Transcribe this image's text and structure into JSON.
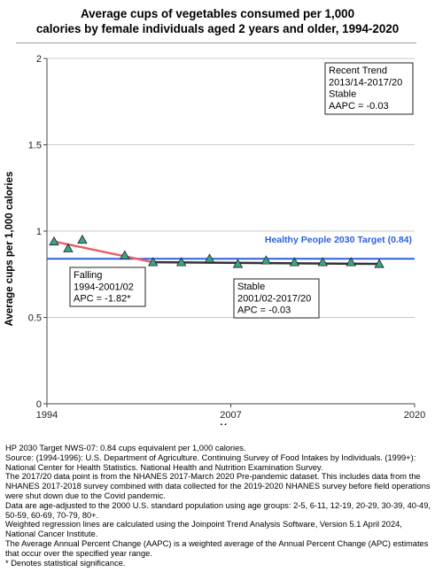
{
  "title": {
    "line1": "Average cups of vegetables consumed per 1,000",
    "line2": "calories by female individuals aged 2 years and older, 1994-2020"
  },
  "chart_data": {
    "type": "scatter",
    "xlabel": "Year",
    "ylabel": "Average cups per 1,000 calories",
    "xlim": [
      1994,
      2020
    ],
    "ylim": [
      0,
      2
    ],
    "x_ticks": [
      1994,
      2007,
      2020
    ],
    "x_tick_labels": [
      "1994",
      "2007",
      "2020"
    ],
    "y_ticks": [
      0,
      0.5,
      1,
      1.5,
      2
    ],
    "y_tick_labels": [
      "0",
      "0.5",
      "1",
      "1.5",
      "2"
    ],
    "grid": "horizontal",
    "points": [
      {
        "x": 1994.5,
        "y": 0.94
      },
      {
        "x": 1995.5,
        "y": 0.9
      },
      {
        "x": 1996.5,
        "y": 0.95
      },
      {
        "x": 1999.5,
        "y": 0.86
      },
      {
        "x": 2001.5,
        "y": 0.82
      },
      {
        "x": 2003.5,
        "y": 0.82
      },
      {
        "x": 2005.5,
        "y": 0.84
      },
      {
        "x": 2007.5,
        "y": 0.81
      },
      {
        "x": 2009.5,
        "y": 0.83
      },
      {
        "x": 2011.5,
        "y": 0.82
      },
      {
        "x": 2013.5,
        "y": 0.82
      },
      {
        "x": 2015.5,
        "y": 0.82
      },
      {
        "x": 2017.5,
        "y": 0.81
      }
    ],
    "trend_segments": [
      {
        "x": [
          1994.5,
          2001.5
        ],
        "y": [
          0.94,
          0.82
        ],
        "color": "#e8606a"
      },
      {
        "x": [
          2001.5,
          2017.5
        ],
        "y": [
          0.82,
          0.81
        ],
        "color": "#333333"
      }
    ],
    "target": {
      "value": 0.84,
      "label": "Healthy People 2030 Target (0.84)",
      "color": "#2f5fe0"
    },
    "marker_color": "#3aa58a",
    "annotations": [
      {
        "lines": [
          "Recent Trend",
          "2013/14-2017/20",
          "Stable",
          "AAPC = -0.03"
        ]
      },
      {
        "lines": [
          "Falling",
          "1994-2001/02",
          "APC = -1.82*"
        ]
      },
      {
        "lines": [
          "Stable",
          "2001/02-2017/20",
          "APC = -0.03"
        ]
      }
    ]
  },
  "notes": [
    "HP 2030 Target NWS-07: 0.84 cups equivalent per 1,000 calories.",
    "Source: (1994-1996): U.S. Department of Agriculture. Continuing Survey of Food Intakes by Individuals. (1999+): National Center for Health Statistics. National Health and Nutrition Examination Survey.",
    "The 2017/20 data point is from the NHANES 2017-March 2020 Pre-pandemic dataset. This includes data from the NHANES 2017-2018 survey combined with data collected for the 2019-2020 NHANES survey before field operations were shut down due to the Covid pandemic.",
    "Data are age-adjusted to the 2000 U.S. standard population using age groups: 2-5, 6-11, 12-19, 20-29, 30-39, 40-49, 50-59, 60-69, 70-79, 80+.",
    "Weighted regression lines are calculated using the Joinpoint Trend Analysis Software, Version 5.1 April 2024, National Cancer Institute.",
    "The Average Annual Percent Change (AAPC) is a weighted average of the Annual Percent Change (APC) estimates that occur over the specified year range.",
    "* Denotes statistical significance."
  ]
}
